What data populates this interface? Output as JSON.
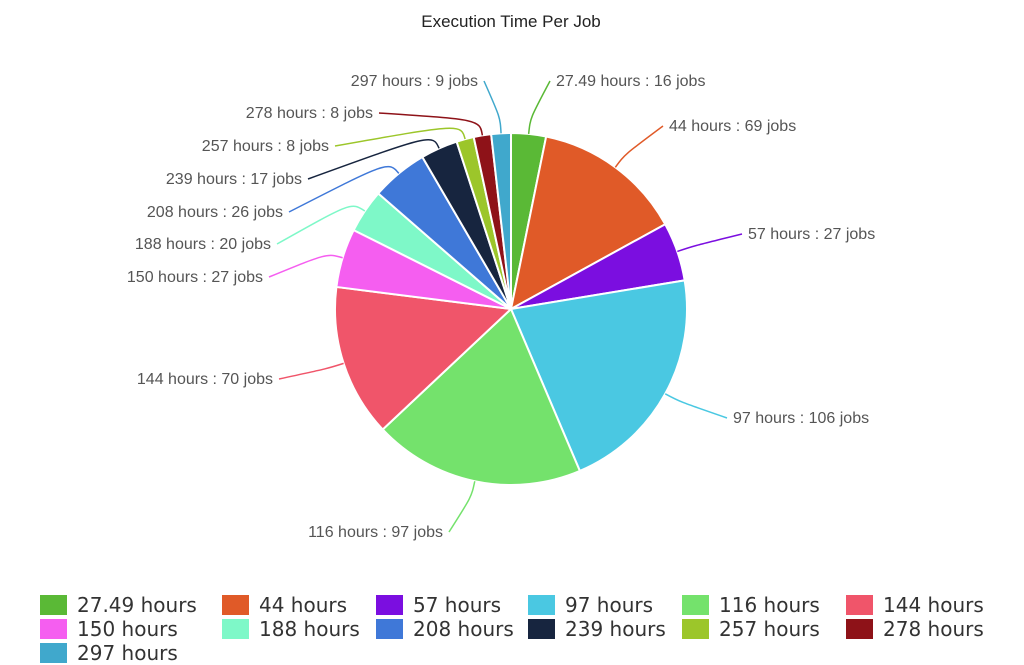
{
  "chart_data": {
    "type": "pie",
    "title": "Execution Time Per Job",
    "label_separator": " : ",
    "slices": [
      {
        "category": "27.49 hours",
        "value": 16,
        "value_label": "16 jobs",
        "color": "#5ab936"
      },
      {
        "category": "44 hours",
        "value": 69,
        "value_label": "69 jobs",
        "color": "#e05a28"
      },
      {
        "category": "57 hours",
        "value": 27,
        "value_label": "27 jobs",
        "color": "#7b0ee0"
      },
      {
        "category": "97 hours",
        "value": 106,
        "value_label": "106 jobs",
        "color": "#4ac8e2"
      },
      {
        "category": "116 hours",
        "value": 97,
        "value_label": "97 jobs",
        "color": "#74e26c"
      },
      {
        "category": "144 hours",
        "value": 70,
        "value_label": "70 jobs",
        "color": "#f0556a"
      },
      {
        "category": "150 hours",
        "value": 27,
        "value_label": "27 jobs",
        "color": "#f55ef0"
      },
      {
        "category": "188 hours",
        "value": 20,
        "value_label": "20 jobs",
        "color": "#7ef8c8"
      },
      {
        "category": "208 hours",
        "value": 26,
        "value_label": "26 jobs",
        "color": "#3f78d8"
      },
      {
        "category": "239 hours",
        "value": 17,
        "value_label": "17 jobs",
        "color": "#17253f"
      },
      {
        "category": "257 hours",
        "value": 8,
        "value_label": "8 jobs",
        "color": "#9cc62a"
      },
      {
        "category": "278 hours",
        "value": 8,
        "value_label": "8 jobs",
        "color": "#8e1218"
      },
      {
        "category": "297 hours",
        "value": 9,
        "value_label": "9 jobs",
        "color": "#40a8cc"
      }
    ],
    "legend_position": "bottom"
  }
}
